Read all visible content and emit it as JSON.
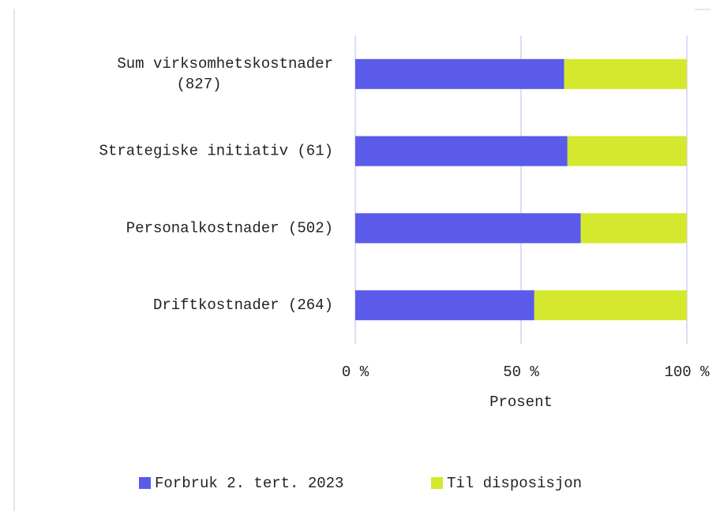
{
  "chart_data": {
    "type": "stacked_barh",
    "categories": [
      "Sum virksomhetskostnader (827)",
      "Strategiske initiativ (61)",
      "Personalkostnader (502)",
      "Driftkostnader (264)"
    ],
    "series": [
      {
        "name": "Forbruk 2. tert. 2023",
        "color": "#5b5bea",
        "values": [
          63,
          64,
          68,
          54
        ]
      },
      {
        "name": "Til disposisjon",
        "color": "#d5e82e",
        "values": [
          37,
          36,
          32,
          46
        ]
      }
    ],
    "xlim": [
      0,
      100
    ],
    "xticks": [
      {
        "value": 0,
        "label": "0 %"
      },
      {
        "value": 50,
        "label": "50 %"
      },
      {
        "value": 100,
        "label": "100 %"
      }
    ],
    "xlabel": "Prosent",
    "grid": true,
    "legend": "bottom"
  }
}
